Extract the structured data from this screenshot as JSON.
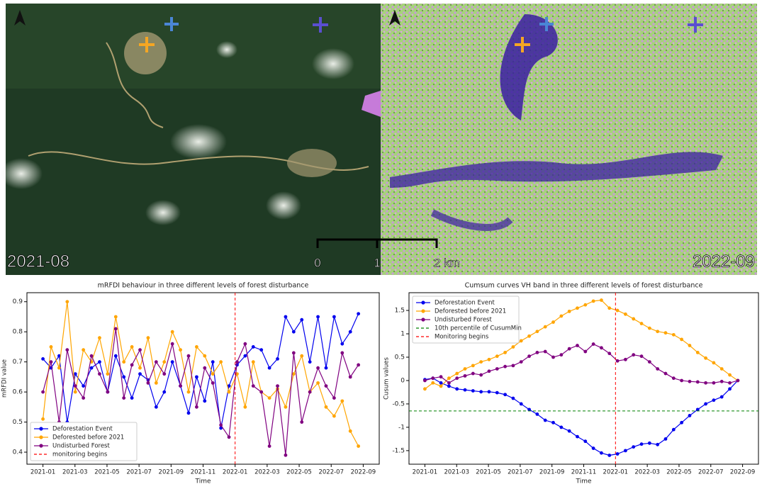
{
  "images": [
    {
      "label": "2021-08"
    },
    {
      "label": "2022-09"
    }
  ],
  "scale_bar": [
    "0",
    "1",
    "2 km"
  ],
  "chart_data": [
    {
      "type": "line",
      "title": "mRFDI behaviour in three different levels of forest disturbance",
      "x_label": "Time",
      "y_label": "mRFDI value",
      "xlim": [
        "2020-12",
        "2022-10"
      ],
      "xticks": [
        "2021-01",
        "2021-03",
        "2021-05",
        "2021-07",
        "2021-09",
        "2021-11",
        "2022-01",
        "2022-03",
        "2022-05",
        "2022-07",
        "2022-09"
      ],
      "ylim": [
        0.36,
        0.93
      ],
      "yticks": [
        0.4,
        0.5,
        0.6,
        0.7,
        0.8,
        0.9
      ],
      "legend": "lower left",
      "series": [
        {
          "name": "Deforestation Event",
          "color": "#0000ee",
          "values": [
            0.71,
            0.68,
            0.72,
            0.5,
            0.66,
            0.62,
            0.68,
            0.7,
            0.6,
            0.72,
            0.65,
            0.58,
            0.66,
            0.64,
            0.55,
            0.6,
            0.7,
            0.62,
            0.53,
            0.65,
            0.57,
            0.7,
            0.48,
            0.62,
            0.69,
            0.72,
            0.75,
            0.74,
            0.68,
            0.71,
            0.85,
            0.8,
            0.84,
            0.7,
            0.85,
            0.68,
            0.85,
            0.76,
            0.8,
            0.86
          ]
        },
        {
          "name": "Deforested before 2021",
          "color": "#ffa500",
          "values": [
            0.51,
            0.75,
            0.68,
            0.9,
            0.6,
            0.74,
            0.7,
            0.78,
            0.66,
            0.85,
            0.7,
            0.75,
            0.68,
            0.78,
            0.63,
            0.7,
            0.8,
            0.74,
            0.6,
            0.75,
            0.72,
            0.66,
            0.7,
            0.6,
            0.66,
            0.55,
            0.7,
            0.6,
            0.58,
            0.61,
            0.55,
            0.66,
            0.72,
            0.6,
            0.63,
            0.55,
            0.52,
            0.57,
            0.47,
            0.42
          ]
        },
        {
          "name": "Undisturbed Forest",
          "color": "#800080",
          "values": [
            0.6,
            0.7,
            0.5,
            0.74,
            0.62,
            0.58,
            0.72,
            0.66,
            0.6,
            0.81,
            0.58,
            0.69,
            0.74,
            0.63,
            0.7,
            0.66,
            0.76,
            0.62,
            0.72,
            0.55,
            0.68,
            0.63,
            0.49,
            0.45,
            0.7,
            0.76,
            0.62,
            0.6,
            0.42,
            0.62,
            0.39,
            0.73,
            0.5,
            0.6,
            0.68,
            0.62,
            0.58,
            0.73,
            0.65,
            0.69
          ]
        }
      ],
      "reference_lines": [
        {
          "orientation": "vertical",
          "x": "2022-01",
          "name": "monitoring begins",
          "color": "#ff0000"
        }
      ]
    },
    {
      "type": "line",
      "title": "Cumsum curves VH band in three different levels of forest disturbance",
      "x_label": "Time",
      "y_label": "Cusum values",
      "xlim": [
        "2020-12",
        "2022-10"
      ],
      "xticks": [
        "2021-01",
        "2021-03",
        "2021-05",
        "2021-07",
        "2021-09",
        "2021-11",
        "2022-01",
        "2022-03",
        "2022-05",
        "2022-07",
        "2022-09"
      ],
      "ylim": [
        -1.79,
        1.88
      ],
      "yticks": [
        -1.5,
        -1.0,
        -0.5,
        0.0,
        0.5,
        1.0,
        1.5
      ],
      "legend": "upper left",
      "series": [
        {
          "name": "Deforestation Event",
          "color": "#0000ee",
          "values": [
            0.02,
            0.05,
            -0.05,
            -0.12,
            -0.18,
            -0.2,
            -0.22,
            -0.24,
            -0.24,
            -0.26,
            -0.3,
            -0.38,
            -0.5,
            -0.62,
            -0.72,
            -0.85,
            -0.9,
            -1.0,
            -1.08,
            -1.2,
            -1.3,
            -1.45,
            -1.55,
            -1.6,
            -1.57,
            -1.5,
            -1.42,
            -1.36,
            -1.34,
            -1.37,
            -1.25,
            -1.05,
            -0.9,
            -0.75,
            -0.62,
            -0.5,
            -0.42,
            -0.35,
            -0.18,
            0.0
          ]
        },
        {
          "name": "Deforested before 2021",
          "color": "#ffa500",
          "values": [
            -0.18,
            -0.05,
            -0.12,
            0.05,
            0.15,
            0.25,
            0.32,
            0.4,
            0.45,
            0.52,
            0.6,
            0.72,
            0.85,
            0.95,
            1.05,
            1.15,
            1.25,
            1.38,
            1.48,
            1.55,
            1.62,
            1.7,
            1.72,
            1.55,
            1.5,
            1.42,
            1.32,
            1.22,
            1.12,
            1.05,
            1.02,
            0.98,
            0.88,
            0.75,
            0.6,
            0.48,
            0.38,
            0.25,
            0.12,
            0.0
          ]
        },
        {
          "name": "Undisturbed Forest",
          "color": "#800080",
          "values": [
            0.0,
            0.05,
            0.08,
            -0.05,
            0.05,
            0.1,
            0.15,
            0.12,
            0.2,
            0.25,
            0.3,
            0.32,
            0.4,
            0.52,
            0.6,
            0.62,
            0.5,
            0.55,
            0.68,
            0.75,
            0.62,
            0.78,
            0.7,
            0.58,
            0.42,
            0.45,
            0.55,
            0.52,
            0.4,
            0.25,
            0.15,
            0.05,
            0.0,
            -0.02,
            -0.03,
            -0.05,
            -0.05,
            -0.02,
            -0.05,
            0.0
          ]
        }
      ],
      "reference_lines": [
        {
          "orientation": "horizontal",
          "y": -0.65,
          "name": "10th percentile of CusumMin",
          "color": "#008000"
        },
        {
          "orientation": "vertical",
          "x": "2022-01",
          "name": "Monitoring begins",
          "color": "#ff0000"
        }
      ]
    }
  ]
}
